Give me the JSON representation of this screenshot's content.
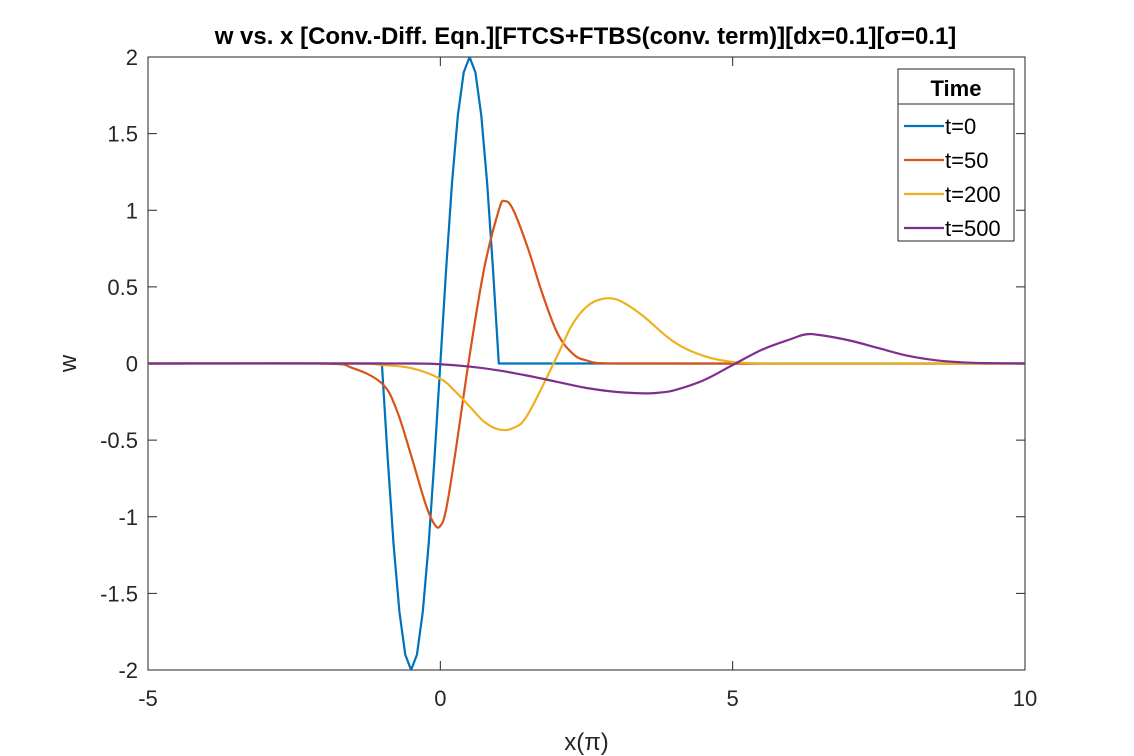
{
  "chart_data": {
    "type": "line",
    "title": "w vs. x [Conv.-Diff. Eqn.][FTCS+FTBS(conv. term)][dx=0.1][σ=0.1]",
    "xlabel": "x(π)",
    "ylabel": "w",
    "xlim": [
      -5,
      10
    ],
    "ylim": [
      -2,
      2
    ],
    "xticks": [
      -5,
      0,
      5,
      10
    ],
    "xtick_labels": [
      "-5",
      "0",
      "5",
      "10"
    ],
    "yticks": [
      2,
      1.5,
      1,
      0.5,
      0,
      -0.5,
      -1,
      -1.5,
      -2
    ],
    "ytick_labels": [
      "2",
      "1.5",
      "1",
      "0.5",
      "0",
      "-0.5",
      "-1",
      "-1.5",
      "-2"
    ],
    "grid": false,
    "legend": {
      "title": "Time",
      "placement": "top-right"
    },
    "series": [
      {
        "name": "t=0",
        "color": "#0072BD",
        "x": [
          -5,
          -1,
          -0.9,
          -0.8,
          -0.7,
          -0.6,
          -0.5,
          -0.4,
          -0.3,
          -0.2,
          -0.1,
          0,
          0.1,
          0.2,
          0.3,
          0.4,
          0.5,
          0.6,
          0.7,
          0.8,
          0.9,
          1.0,
          10
        ],
        "y": [
          0,
          0,
          -0.62,
          -1.18,
          -1.62,
          -1.9,
          -2.0,
          -1.9,
          -1.62,
          -1.18,
          -0.62,
          0,
          0.62,
          1.18,
          1.62,
          1.9,
          2.0,
          1.9,
          1.62,
          1.18,
          0.62,
          0,
          0
        ]
      },
      {
        "name": "t=50",
        "color": "#D95319",
        "x": [
          -5,
          -2,
          -1.5,
          -1.0,
          -0.75,
          -0.5,
          -0.25,
          -0.1,
          0,
          0.1,
          0.25,
          0.5,
          0.75,
          1.0,
          1.1,
          1.25,
          1.5,
          1.75,
          2.0,
          2.25,
          2.5,
          3,
          10
        ],
        "y": [
          0,
          0,
          -0.03,
          -0.13,
          -0.3,
          -0.6,
          -0.92,
          -1.05,
          -1.06,
          -0.95,
          -0.6,
          0.05,
          0.62,
          1.0,
          1.06,
          1.0,
          0.75,
          0.45,
          0.2,
          0.07,
          0.02,
          0,
          0
        ]
      },
      {
        "name": "t=200",
        "color": "#EDB120",
        "x": [
          -5,
          -1.5,
          -1.0,
          -0.5,
          0,
          0.25,
          0.5,
          0.75,
          1.0,
          1.25,
          1.5,
          2.0,
          2.25,
          2.5,
          2.75,
          3.0,
          3.25,
          3.5,
          4.0,
          4.5,
          5.0,
          5.5,
          6.0,
          10
        ],
        "y": [
          0,
          0,
          -0.01,
          -0.03,
          -0.1,
          -0.18,
          -0.28,
          -0.38,
          -0.43,
          -0.42,
          -0.33,
          0.05,
          0.25,
          0.37,
          0.42,
          0.42,
          0.37,
          0.3,
          0.14,
          0.05,
          0.01,
          0,
          0,
          0
        ]
      },
      {
        "name": "t=500",
        "color": "#7E2F8E",
        "x": [
          -5,
          -0.5,
          0,
          0.5,
          1.0,
          1.5,
          2.0,
          2.5,
          3.0,
          3.5,
          3.75,
          4.0,
          4.5,
          5.0,
          5.5,
          6.0,
          6.25,
          6.5,
          7.0,
          7.5,
          8.0,
          8.5,
          9.0,
          9.5,
          10
        ],
        "y": [
          0,
          0,
          -0.005,
          -0.02,
          -0.045,
          -0.08,
          -0.12,
          -0.16,
          -0.185,
          -0.195,
          -0.19,
          -0.175,
          -0.11,
          -0.01,
          0.09,
          0.16,
          0.19,
          0.185,
          0.15,
          0.1,
          0.05,
          0.02,
          0.006,
          0.002,
          0
        ]
      }
    ]
  }
}
